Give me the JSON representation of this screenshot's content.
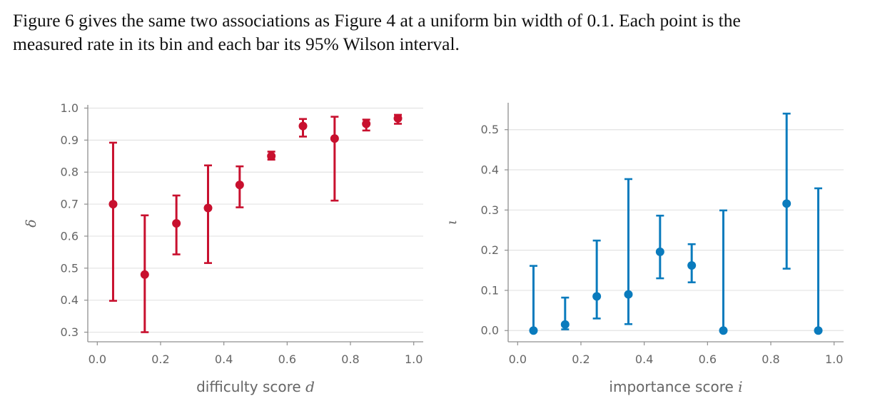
{
  "caption": {
    "line1": "Figure 6 gives the same two associations as Figure 4 at a uniform bin width of 0.1. Each point is the",
    "line2": "measured rate in its bin and each bar its 95% Wilson interval."
  },
  "chart_data": [
    {
      "type": "scatter",
      "error_bars": true,
      "color": "#c8102e",
      "x": [
        0.05,
        0.15,
        0.25,
        0.35,
        0.45,
        0.55,
        0.65,
        0.75,
        0.85,
        0.95
      ],
      "y": [
        0.7,
        0.48,
        0.64,
        0.688,
        0.76,
        0.85,
        0.944,
        0.905,
        0.951,
        0.968
      ],
      "lower": [
        0.398,
        0.3,
        0.543,
        0.516,
        0.69,
        0.839,
        0.911,
        0.711,
        0.93,
        0.951
      ],
      "upper": [
        0.892,
        0.665,
        0.727,
        0.821,
        0.818,
        0.864,
        0.966,
        0.973,
        0.964,
        0.979
      ],
      "xlabel_text": "difficulty score ",
      "xlabel_var": "d",
      "ylabel": "δ",
      "xlim": [
        -0.03,
        1.03
      ],
      "ylim": [
        0.27,
        1.01
      ],
      "xticks": [
        "0.0",
        "0.2",
        "0.4",
        "0.6",
        "0.8",
        "1.0"
      ],
      "yticks": [
        "0.3",
        "0.4",
        "0.5",
        "0.6",
        "0.7",
        "0.8",
        "0.9",
        "1.0"
      ],
      "grid": "horizontal"
    },
    {
      "type": "scatter",
      "error_bars": true,
      "color": "#0a7bbd",
      "x": [
        0.05,
        0.15,
        0.25,
        0.35,
        0.45,
        0.55,
        0.65,
        0.85,
        0.95
      ],
      "y": [
        0.0,
        0.015,
        0.085,
        0.09,
        0.196,
        0.162,
        0.0,
        0.316,
        0.0
      ],
      "lower": [
        0.0,
        0.003,
        0.03,
        0.016,
        0.13,
        0.12,
        0.0,
        0.154,
        0.0
      ],
      "upper": [
        0.161,
        0.082,
        0.224,
        0.377,
        0.286,
        0.215,
        0.299,
        0.54,
        0.354
      ],
      "xlabel_text": "importance score ",
      "xlabel_var": "i",
      "ylabel": "ι",
      "xlim": [
        -0.03,
        1.03
      ],
      "ylim": [
        -0.028,
        0.567
      ],
      "xticks": [
        "0.0",
        "0.2",
        "0.4",
        "0.6",
        "0.8",
        "1.0"
      ],
      "yticks": [
        "0.0",
        "0.1",
        "0.2",
        "0.3",
        "0.4",
        "0.5"
      ],
      "grid": "horizontal"
    }
  ]
}
